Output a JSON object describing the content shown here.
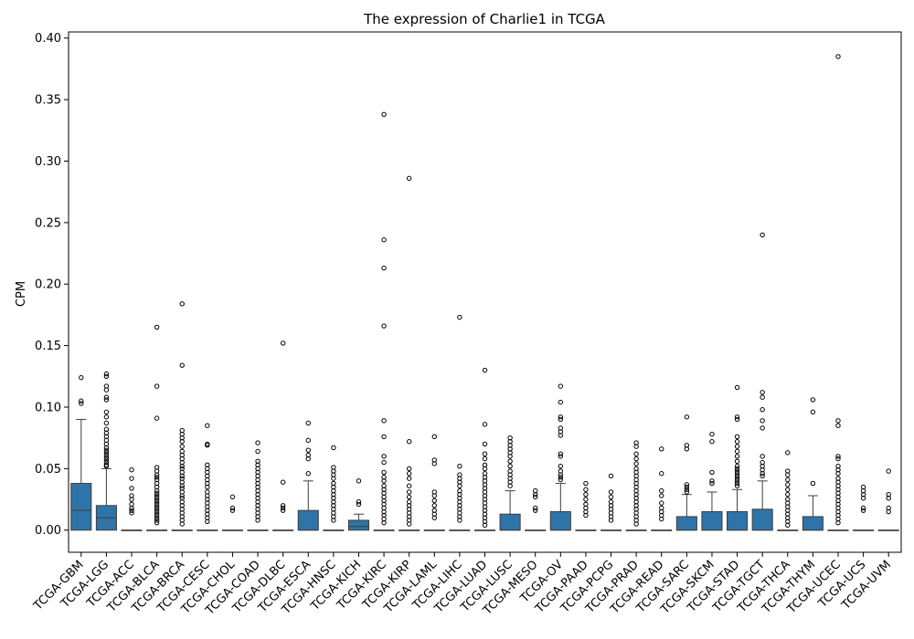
{
  "chart_data": {
    "type": "box",
    "title": "The expression of Charlie1 in TCGA",
    "xlabel": "",
    "ylabel": "CPM",
    "ylim": [
      -0.018,
      0.405
    ],
    "yticks": [
      0.0,
      0.05,
      0.1,
      0.15,
      0.2,
      0.25,
      0.3,
      0.35,
      0.4
    ],
    "ytick_labels": [
      "0.00",
      "0.05",
      "0.10",
      "0.15",
      "0.20",
      "0.25",
      "0.30",
      "0.35",
      "0.40"
    ],
    "grid": false,
    "box_color": "#2f74a8",
    "categories": [
      "TCGA-GBM",
      "TCGA-LGG",
      "TCGA-ACC",
      "TCGA-BLCA",
      "TCGA-BRCA",
      "TCGA-CESC",
      "TCGA-CHOL",
      "TCGA-COAD",
      "TCGA-DLBC",
      "TCGA-ESCA",
      "TCGA-HNSC",
      "TCGA-KICH",
      "TCGA-KIRC",
      "TCGA-KIRP",
      "TCGA-LAML",
      "TCGA-LIHC",
      "TCGA-LUAD",
      "TCGA-LUSC",
      "TCGA-MESO",
      "TCGA-OV",
      "TCGA-PAAD",
      "TCGA-PCPG",
      "TCGA-PRAD",
      "TCGA-READ",
      "TCGA-SARC",
      "TCGA-SKCM",
      "TCGA-STAD",
      "TCGA-TGCT",
      "TCGA-THCA",
      "TCGA-THYM",
      "TCGA-UCEC",
      "TCGA-UCS",
      "TCGA-UVM"
    ],
    "boxes": [
      {
        "q1": 0.0,
        "median": 0.016,
        "q3": 0.038,
        "whisker_low": 0.0,
        "whisker_high": 0.09,
        "outliers": [
          0.124,
          0.105,
          0.103
        ]
      },
      {
        "q1": 0.0,
        "median": 0.01,
        "q3": 0.02,
        "whisker_low": 0.0,
        "whisker_high": 0.05,
        "outliers": [
          0.127,
          0.125,
          0.117,
          0.114,
          0.108,
          0.106,
          0.096,
          0.092,
          0.087,
          0.082,
          0.079,
          0.076,
          0.073,
          0.07,
          0.067,
          0.065,
          0.063,
          0.061,
          0.059,
          0.057,
          0.055,
          0.053,
          0.052
        ]
      },
      {
        "q1": 0.0,
        "median": 0.0,
        "q3": 0.0,
        "whisker_low": 0.0,
        "whisker_high": 0.0,
        "outliers": [
          0.049,
          0.042,
          0.034,
          0.028,
          0.025,
          0.021,
          0.018,
          0.016,
          0.014
        ]
      },
      {
        "q1": 0.0,
        "median": 0.0,
        "q3": 0.0,
        "whisker_low": 0.0,
        "whisker_high": 0.0,
        "outliers": [
          0.165,
          0.117,
          0.091,
          0.051,
          0.048,
          0.045,
          0.043,
          0.041,
          0.038,
          0.035,
          0.032,
          0.03,
          0.028,
          0.026,
          0.024,
          0.022,
          0.02,
          0.018,
          0.016,
          0.014,
          0.012,
          0.01,
          0.008,
          0.006
        ]
      },
      {
        "q1": 0.0,
        "median": 0.0,
        "q3": 0.0,
        "whisker_low": 0.0,
        "whisker_high": 0.0,
        "outliers": [
          0.184,
          0.134,
          0.081,
          0.078,
          0.075,
          0.072,
          0.068,
          0.064,
          0.061,
          0.058,
          0.055,
          0.052,
          0.05,
          0.047,
          0.044,
          0.042,
          0.039,
          0.036,
          0.034,
          0.031,
          0.028,
          0.026,
          0.023,
          0.02,
          0.017,
          0.014,
          0.011,
          0.008,
          0.005
        ]
      },
      {
        "q1": 0.0,
        "median": 0.0,
        "q3": 0.0,
        "whisker_low": 0.0,
        "whisker_high": 0.0,
        "outliers": [
          0.085,
          0.07,
          0.069,
          0.053,
          0.05,
          0.047,
          0.044,
          0.041,
          0.038,
          0.035,
          0.031,
          0.028,
          0.025,
          0.022,
          0.019,
          0.016,
          0.013,
          0.01,
          0.007
        ]
      },
      {
        "q1": 0.0,
        "median": 0.0,
        "q3": 0.0,
        "whisker_low": 0.0,
        "whisker_high": 0.0,
        "outliers": [
          0.027,
          0.018,
          0.016
        ]
      },
      {
        "q1": 0.0,
        "median": 0.0,
        "q3": 0.0,
        "whisker_low": 0.0,
        "whisker_high": 0.0,
        "outliers": [
          0.071,
          0.064,
          0.056,
          0.053,
          0.05,
          0.047,
          0.044,
          0.041,
          0.038,
          0.035,
          0.032,
          0.029,
          0.026,
          0.023,
          0.02,
          0.017,
          0.014,
          0.011,
          0.008
        ]
      },
      {
        "q1": 0.0,
        "median": 0.0,
        "q3": 0.0,
        "whisker_low": 0.0,
        "whisker_high": 0.0,
        "outliers": [
          0.152,
          0.039,
          0.02,
          0.018,
          0.016
        ]
      },
      {
        "q1": 0.0,
        "median": 0.0,
        "q3": 0.016,
        "whisker_low": 0.0,
        "whisker_high": 0.04,
        "outliers": [
          0.087,
          0.073,
          0.065,
          0.061,
          0.058,
          0.046
        ]
      },
      {
        "q1": 0.0,
        "median": 0.0,
        "q3": 0.0,
        "whisker_low": 0.0,
        "whisker_high": 0.0,
        "outliers": [
          0.067,
          0.051,
          0.048,
          0.045,
          0.042,
          0.038,
          0.035,
          0.032,
          0.029,
          0.026,
          0.023,
          0.02,
          0.017,
          0.014,
          0.011,
          0.008
        ]
      },
      {
        "q1": 0.0,
        "median": 0.003,
        "q3": 0.008,
        "whisker_low": 0.0,
        "whisker_high": 0.013,
        "outliers": [
          0.04,
          0.023,
          0.021
        ]
      },
      {
        "q1": 0.0,
        "median": 0.0,
        "q3": 0.0,
        "whisker_low": 0.0,
        "whisker_high": 0.0,
        "outliers": [
          0.338,
          0.236,
          0.213,
          0.166,
          0.089,
          0.076,
          0.06,
          0.055,
          0.047,
          0.043,
          0.04,
          0.036,
          0.033,
          0.03,
          0.027,
          0.024,
          0.021,
          0.018,
          0.015,
          0.012,
          0.009,
          0.006
        ]
      },
      {
        "q1": 0.0,
        "median": 0.0,
        "q3": 0.0,
        "whisker_low": 0.0,
        "whisker_high": 0.0,
        "outliers": [
          0.286,
          0.072,
          0.05,
          0.046,
          0.042,
          0.036,
          0.031,
          0.027,
          0.023,
          0.02,
          0.017,
          0.014,
          0.011,
          0.008,
          0.005
        ]
      },
      {
        "q1": 0.0,
        "median": 0.0,
        "q3": 0.0,
        "whisker_low": 0.0,
        "whisker_high": 0.0,
        "outliers": [
          0.076,
          0.057,
          0.054,
          0.031,
          0.028,
          0.024,
          0.02,
          0.016,
          0.013,
          0.01
        ]
      },
      {
        "q1": 0.0,
        "median": 0.0,
        "q3": 0.0,
        "whisker_low": 0.0,
        "whisker_high": 0.0,
        "outliers": [
          0.173,
          0.052,
          0.045,
          0.042,
          0.039,
          0.036,
          0.032,
          0.029,
          0.026,
          0.023,
          0.02,
          0.017,
          0.014,
          0.011,
          0.008
        ]
      },
      {
        "q1": 0.0,
        "median": 0.0,
        "q3": 0.0,
        "whisker_low": 0.0,
        "whisker_high": 0.0,
        "outliers": [
          0.13,
          0.086,
          0.07,
          0.062,
          0.058,
          0.053,
          0.05,
          0.046,
          0.043,
          0.04,
          0.037,
          0.034,
          0.031,
          0.028,
          0.025,
          0.022,
          0.019,
          0.016,
          0.013,
          0.01,
          0.007,
          0.004
        ]
      },
      {
        "q1": 0.0,
        "median": 0.0,
        "q3": 0.013,
        "whisker_low": 0.0,
        "whisker_high": 0.032,
        "outliers": [
          0.075,
          0.072,
          0.069,
          0.066,
          0.063,
          0.06,
          0.056,
          0.052,
          0.048,
          0.045,
          0.042,
          0.039,
          0.036
        ]
      },
      {
        "q1": 0.0,
        "median": 0.0,
        "q3": 0.0,
        "whisker_low": 0.0,
        "whisker_high": 0.0,
        "outliers": [
          0.032,
          0.029,
          0.027,
          0.018,
          0.016
        ]
      },
      {
        "q1": 0.0,
        "median": 0.0,
        "q3": 0.015,
        "whisker_low": 0.0,
        "whisker_high": 0.038,
        "outliers": [
          0.117,
          0.104,
          0.092,
          0.09,
          0.083,
          0.08,
          0.077,
          0.062,
          0.06,
          0.052,
          0.048,
          0.045,
          0.043,
          0.041
        ]
      },
      {
        "q1": 0.0,
        "median": 0.0,
        "q3": 0.0,
        "whisker_low": 0.0,
        "whisker_high": 0.0,
        "outliers": [
          0.038,
          0.033,
          0.029,
          0.025,
          0.021,
          0.018,
          0.015,
          0.012
        ]
      },
      {
        "q1": 0.0,
        "median": 0.0,
        "q3": 0.0,
        "whisker_low": 0.0,
        "whisker_high": 0.0,
        "outliers": [
          0.044,
          0.031,
          0.027,
          0.023,
          0.02,
          0.017,
          0.014,
          0.011,
          0.008
        ]
      },
      {
        "q1": 0.0,
        "median": 0.0,
        "q3": 0.0,
        "whisker_low": 0.0,
        "whisker_high": 0.0,
        "outliers": [
          0.071,
          0.068,
          0.062,
          0.058,
          0.054,
          0.05,
          0.047,
          0.044,
          0.041,
          0.038,
          0.035,
          0.032,
          0.029,
          0.026,
          0.023,
          0.02,
          0.017,
          0.014,
          0.011,
          0.008,
          0.005
        ]
      },
      {
        "q1": 0.0,
        "median": 0.0,
        "q3": 0.0,
        "whisker_low": 0.0,
        "whisker_high": 0.0,
        "outliers": [
          0.066,
          0.046,
          0.032,
          0.028,
          0.022,
          0.018,
          0.015,
          0.012,
          0.009
        ]
      },
      {
        "q1": 0.0,
        "median": 0.0,
        "q3": 0.011,
        "whisker_low": 0.0,
        "whisker_high": 0.029,
        "outliers": [
          0.092,
          0.069,
          0.066,
          0.037,
          0.035,
          0.033,
          0.031
        ]
      },
      {
        "q1": 0.0,
        "median": 0.0,
        "q3": 0.015,
        "whisker_low": 0.0,
        "whisker_high": 0.031,
        "outliers": [
          0.078,
          0.072,
          0.047,
          0.04,
          0.038
        ]
      },
      {
        "q1": 0.0,
        "median": 0.0,
        "q3": 0.015,
        "whisker_low": 0.0,
        "whisker_high": 0.033,
        "outliers": [
          0.116,
          0.092,
          0.09,
          0.076,
          0.072,
          0.068,
          0.064,
          0.06,
          0.056,
          0.052,
          0.05,
          0.048,
          0.046,
          0.044,
          0.042,
          0.04,
          0.038,
          0.036
        ]
      },
      {
        "q1": 0.0,
        "median": 0.0,
        "q3": 0.017,
        "whisker_low": 0.0,
        "whisker_high": 0.04,
        "outliers": [
          0.24,
          0.112,
          0.108,
          0.098,
          0.089,
          0.083,
          0.06,
          0.055,
          0.052,
          0.049,
          0.046,
          0.044
        ]
      },
      {
        "q1": 0.0,
        "median": 0.0,
        "q3": 0.0,
        "whisker_low": 0.0,
        "whisker_high": 0.0,
        "outliers": [
          0.063,
          0.048,
          0.045,
          0.041,
          0.037,
          0.033,
          0.029,
          0.025,
          0.022,
          0.019,
          0.016,
          0.013,
          0.01,
          0.007,
          0.004
        ]
      },
      {
        "q1": 0.0,
        "median": 0.0,
        "q3": 0.011,
        "whisker_low": 0.0,
        "whisker_high": 0.028,
        "outliers": [
          0.106,
          0.096,
          0.038
        ]
      },
      {
        "q1": 0.0,
        "median": 0.0,
        "q3": 0.0,
        "whisker_low": 0.0,
        "whisker_high": 0.0,
        "outliers": [
          0.385,
          0.089,
          0.085,
          0.06,
          0.058,
          0.052,
          0.049,
          0.046,
          0.042,
          0.039,
          0.036,
          0.033,
          0.03,
          0.027,
          0.024,
          0.021,
          0.018,
          0.015,
          0.012,
          0.009,
          0.006
        ]
      },
      {
        "q1": 0.0,
        "median": 0.0,
        "q3": 0.0,
        "whisker_low": 0.0,
        "whisker_high": 0.0,
        "outliers": [
          0.035,
          0.032,
          0.029,
          0.026,
          0.018,
          0.016
        ]
      },
      {
        "q1": 0.0,
        "median": 0.0,
        "q3": 0.0,
        "whisker_low": 0.0,
        "whisker_high": 0.0,
        "outliers": [
          0.048,
          0.029,
          0.026,
          0.018,
          0.015
        ]
      }
    ]
  }
}
